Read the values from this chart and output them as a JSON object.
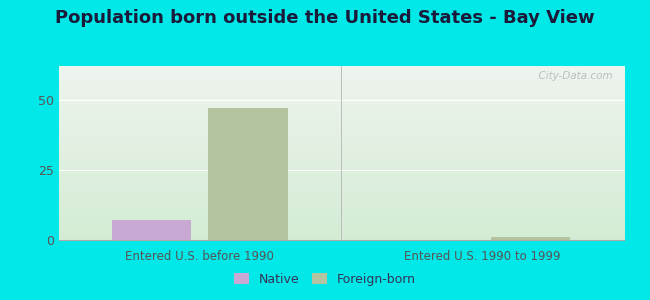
{
  "title": "Population born outside the United States - Bay View",
  "title_fontsize": 13,
  "background_color": "#00e8e8",
  "plot_bg_top": "#eef4ee",
  "plot_bg_bottom": "#d4ecd4",
  "groups": [
    "Entered U.S. before 1990",
    "Entered U.S. 1990 to 1999"
  ],
  "native_values": [
    7,
    0
  ],
  "foreign_values": [
    47,
    1
  ],
  "native_color": "#c9a8d4",
  "foreign_color": "#b5c4a0",
  "yticks": [
    0,
    25,
    50
  ],
  "ylim": [
    0,
    62
  ],
  "bar_width": 0.28,
  "watermark": "  City-Data.com",
  "legend_native": "Native",
  "legend_foreign": "Foreign-born",
  "xlabel_fontsize": 8.5,
  "tick_fontsize": 9,
  "legend_fontsize": 9,
  "group_positions": [
    0,
    1
  ],
  "xlim": [
    -0.5,
    1.5
  ]
}
